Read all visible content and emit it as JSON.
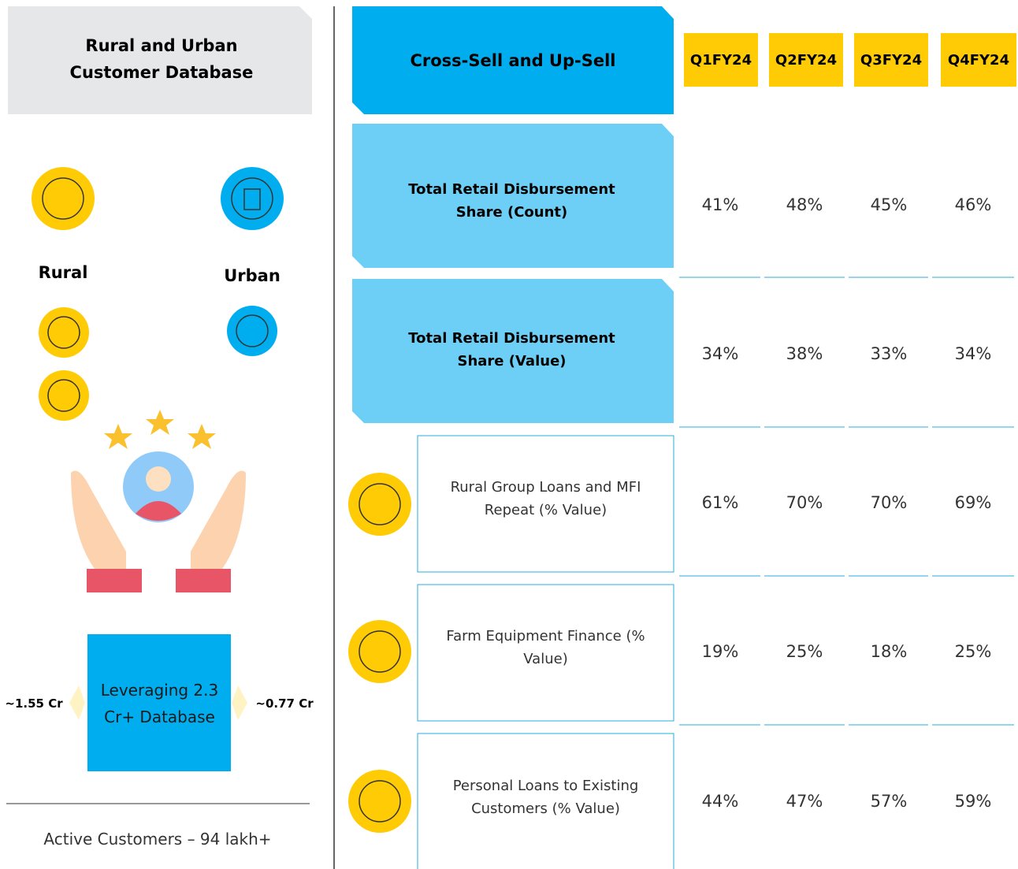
{
  "left": {
    "title": "Rural and Urban Customer Database",
    "rural_label": "Rural",
    "urban_label": "Urban",
    "database_text": "Leveraging 2.3 Cr+ Database",
    "rural_count": "~1.55 Cr",
    "urban_count": "~0.77 Cr",
    "footer": "Active Customers – 94 lakh+"
  },
  "table": {
    "title": "Cross-Sell and Up-Sell",
    "columns": [
      "Q1FY24",
      "Q2FY24",
      "Q3FY24",
      "Q4FY24"
    ],
    "rows": [
      {
        "label": "Total Retail Disbursement Share (Count)",
        "values": [
          "41%",
          "48%",
          "45%",
          "46%"
        ]
      },
      {
        "label": "Total Retail Disbursement Share (Value)",
        "values": [
          "34%",
          "38%",
          "33%",
          "34%"
        ]
      },
      {
        "label": "Rural Group Loans and MFI Repeat (% Value)",
        "values": [
          "61%",
          "70%",
          "70%",
          "69%"
        ]
      },
      {
        "label": "Farm Equipment Finance (% Value)",
        "values": [
          "19%",
          "25%",
          "18%",
          "25%"
        ]
      },
      {
        "label": "Personal Loans to Existing Customers (% Value)",
        "values": [
          "44%",
          "47%",
          "57%",
          "59%"
        ]
      }
    ]
  }
}
